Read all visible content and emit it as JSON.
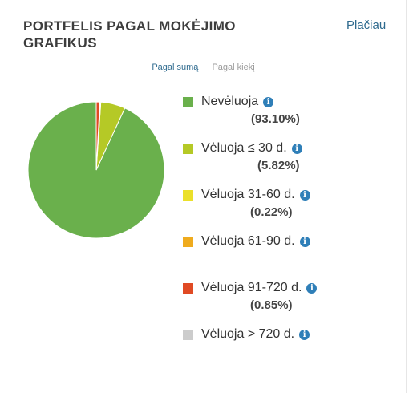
{
  "header": {
    "title": "Portfelis pagal mokėjimo grafikus",
    "more_link": "Plačiau"
  },
  "tabs": [
    {
      "label": "Pagal sumą",
      "active": true
    },
    {
      "label": "Pagal kiekį",
      "active": false
    }
  ],
  "icons": {
    "info": "info-icon"
  },
  "chart_data": {
    "type": "pie",
    "title": "",
    "legend_position": "right",
    "slices": [
      {
        "label": "Nevėluoja",
        "value": 93.1,
        "pct_label": "(93.10%)",
        "color": "#6ab04c"
      },
      {
        "label": "Vėluoja ≤ 30 d.",
        "value": 5.82,
        "pct_label": "(5.82%)",
        "color": "#b5c926"
      },
      {
        "label": "Vėluoja 31-60 d.",
        "value": 0.22,
        "pct_label": "(0.22%)",
        "color": "#ebe02a"
      },
      {
        "label": "Vėluoja 61-90 d.",
        "value": 0,
        "pct_label": "",
        "color": "#efab1e"
      },
      {
        "label": "Vėluoja 91-720 d.",
        "value": 0.85,
        "pct_label": "(0.85%)",
        "color": "#e04a24"
      },
      {
        "label": "Vėluoja > 720 d.",
        "value": 0,
        "pct_label": "",
        "color": "#cccccc"
      }
    ]
  }
}
